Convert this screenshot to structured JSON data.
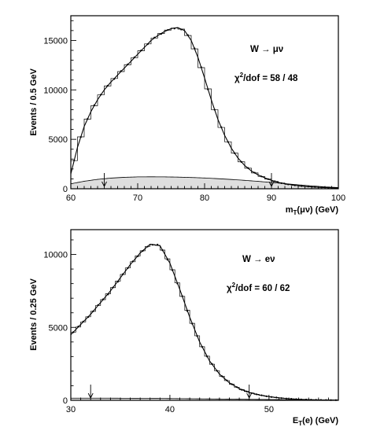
{
  "chart_data": [
    {
      "type": "line",
      "xlabel_main": "m",
      "xlabel_sub": "T",
      "xlabel_rest": "(μν) (GeV)",
      "ylabel": "Events / 0.5 GeV",
      "xlim": [
        60,
        100
      ],
      "ylim": [
        0,
        17500
      ],
      "xticks": [
        60,
        70,
        80,
        90,
        100
      ],
      "yticks": [
        0,
        5000,
        10000,
        15000
      ],
      "annotations": {
        "process": "W → μν",
        "chi2_prefix": "χ",
        "chi2_sup": "2",
        "chi2_rest": "/dof = 58 / 48"
      },
      "cut_arrows_x": [
        65,
        90
      ],
      "signal": {
        "x": [
          60,
          61,
          62,
          63,
          64,
          65,
          66,
          67,
          68,
          69,
          70,
          71,
          72,
          73,
          74,
          75,
          76,
          77,
          78,
          79,
          80,
          81,
          82,
          83,
          84,
          85,
          86,
          87,
          88,
          89,
          90,
          91,
          92,
          93,
          94,
          95,
          96,
          97,
          98,
          99,
          100
        ],
        "y": [
          1500,
          4200,
          6300,
          7800,
          9000,
          10000,
          10800,
          11500,
          12200,
          12900,
          13600,
          14300,
          15000,
          15500,
          15900,
          16200,
          16300,
          16000,
          15000,
          13300,
          11200,
          9000,
          7000,
          5400,
          4100,
          3100,
          2350,
          1800,
          1400,
          1100,
          850,
          650,
          500,
          400,
          310,
          240,
          190,
          150,
          120,
          95,
          75
        ]
      },
      "background": {
        "x": [
          60,
          62,
          64,
          66,
          68,
          70,
          72,
          74,
          76,
          78,
          80,
          82,
          84,
          86,
          88,
          90,
          92,
          94,
          96,
          98,
          100
        ],
        "y": [
          500,
          760,
          950,
          1080,
          1160,
          1200,
          1210,
          1200,
          1180,
          1140,
          1090,
          1020,
          940,
          850,
          750,
          640,
          520,
          400,
          290,
          190,
          120
        ]
      }
    },
    {
      "type": "line",
      "xlabel_main": "E",
      "xlabel_sub": "T",
      "xlabel_rest": "(e) (GeV)",
      "ylabel": "Events / 0.25 GeV",
      "xlim": [
        30,
        57
      ],
      "ylim": [
        0,
        11700
      ],
      "xticks": [
        30,
        40,
        50
      ],
      "yticks": [
        0,
        5000,
        10000
      ],
      "annotations": {
        "process": "W → eν",
        "chi2_prefix": "χ",
        "chi2_sup": "2",
        "chi2_rest": "/dof = 60 / 62"
      },
      "cut_arrows_x": [
        32,
        48
      ],
      "signal": {
        "x": [
          30,
          31,
          32,
          33,
          34,
          35,
          36,
          37,
          38,
          39,
          40,
          41,
          42,
          43,
          44,
          45,
          46,
          47,
          48,
          49,
          50,
          51,
          52,
          53,
          54,
          55,
          56,
          57
        ],
        "y": [
          4500,
          5200,
          5900,
          6700,
          7500,
          8400,
          9300,
          10100,
          10700,
          10600,
          9400,
          7600,
          5700,
          4000,
          2700,
          1800,
          1200,
          800,
          540,
          370,
          250,
          170,
          110,
          70,
          45,
          30,
          20,
          10
        ]
      },
      "background": {
        "x": [
          30,
          33,
          36,
          39,
          42,
          45,
          48,
          51,
          54,
          57
        ],
        "y": [
          150,
          150,
          140,
          130,
          110,
          90,
          70,
          50,
          30,
          20
        ]
      }
    }
  ]
}
